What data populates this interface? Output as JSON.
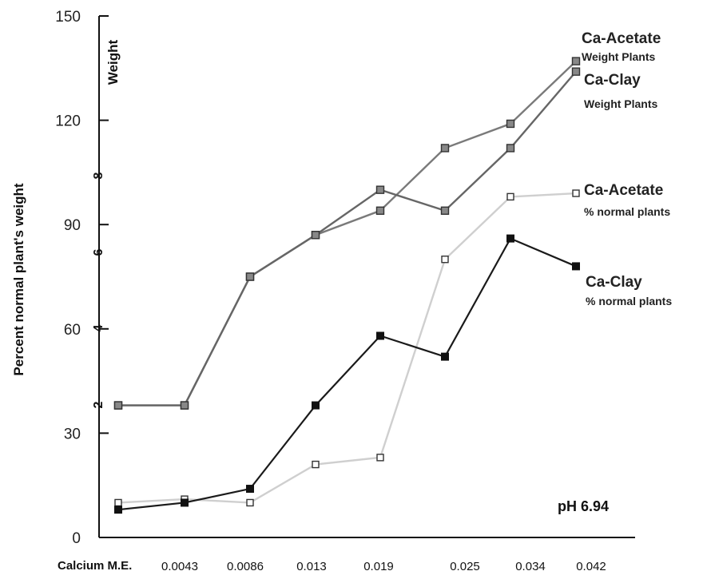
{
  "chart_data": {
    "type": "line",
    "ylabel": "Percent normal plant's weight",
    "secondary_axis": {
      "label": "Weight",
      "ticks": [
        "2",
        "4",
        "6",
        "8"
      ]
    },
    "xlabel": "Calcium M.E.",
    "x_tick_labels": [
      "0.0043",
      "0.0086",
      "0.013",
      "0.019",
      "0.025",
      "0.034",
      "0.042"
    ],
    "ylim": [
      0,
      150
    ],
    "yticks": [
      0,
      30,
      60,
      90,
      120,
      150
    ],
    "grid": false,
    "annotation": "pH 6.94",
    "series": [
      {
        "name_main": "Ca-Acetate",
        "name_sub": "Weight Plants",
        "color": "#7a7a7a",
        "marker": "filled-gray",
        "values": [
          38,
          38,
          75,
          87,
          94,
          112,
          119,
          137
        ]
      },
      {
        "name_main": "Ca-Clay",
        "name_sub": "Weight Plants",
        "color": "#666666",
        "marker": "filled-gray",
        "values": [
          38,
          38,
          75,
          87,
          100,
          94,
          112,
          134
        ]
      },
      {
        "name_main": "Ca-Acetate",
        "name_sub": "% normal plants",
        "color": "#cfcfcf",
        "marker": "open",
        "values": [
          10,
          11,
          10,
          21,
          23,
          80,
          98,
          99
        ]
      },
      {
        "name_main": "Ca-Clay",
        "name_sub": "% normal plants",
        "color": "#1a1a1a",
        "marker": "filled-black",
        "values": [
          8,
          10,
          14,
          38,
          58,
          52,
          86,
          78
        ]
      }
    ]
  }
}
